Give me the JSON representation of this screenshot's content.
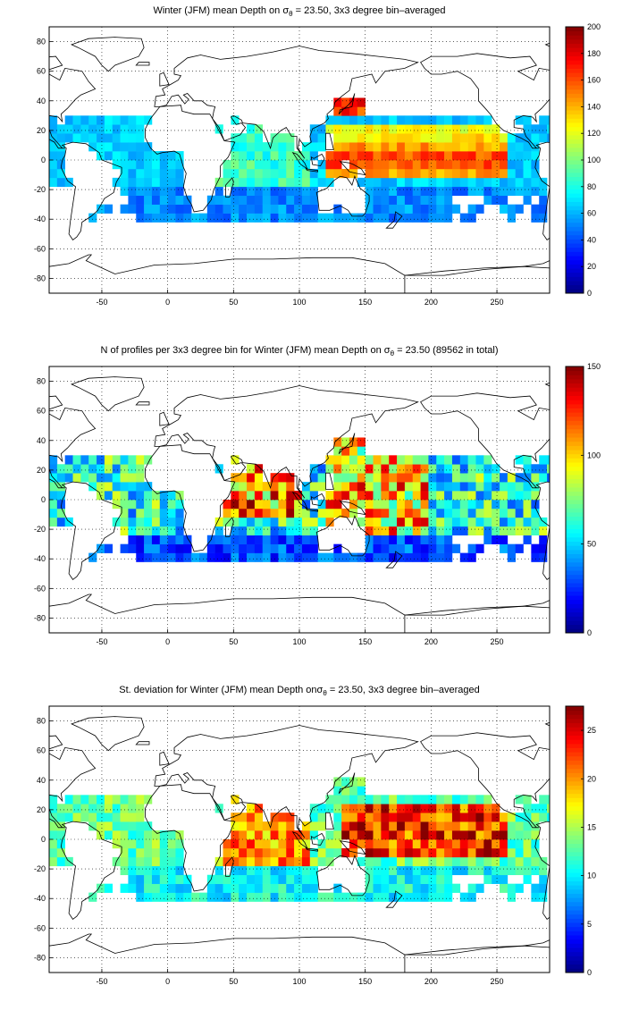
{
  "chart_data": [
    {
      "type": "heatmap",
      "title_prefix": "Winter (JFM) mean Depth on ",
      "title_symbol": "σ",
      "title_sub": "θ",
      "title_suffix": " = 23.50, 3x3 degree bin–averaged",
      "xlim": [
        -90,
        290
      ],
      "ylim": [
        -90,
        90
      ],
      "xticks": [
        "-50",
        "0",
        "50",
        "100",
        "150",
        "200",
        "250"
      ],
      "yticks": [
        "80",
        "60",
        "40",
        "20",
        "0",
        "-20",
        "-40",
        "-60",
        "-80"
      ],
      "colorbar": {
        "min": 0,
        "max": 200,
        "ticks": [
          "200",
          "180",
          "160",
          "140",
          "120",
          "100",
          "80",
          "60",
          "40",
          "20",
          "0"
        ]
      },
      "colormap": "jet",
      "grid": true,
      "field": "mean_depth"
    },
    {
      "type": "heatmap",
      "title_prefix": "N of profiles per 3x3 degree bin for Winter (JFM) mean Depth on ",
      "title_symbol": "σ",
      "title_sub": "θ",
      "title_suffix": " = 23.50 (89562 in total)",
      "xlim": [
        -90,
        290
      ],
      "ylim": [
        -90,
        90
      ],
      "xticks": [
        "-50",
        "0",
        "50",
        "100",
        "150",
        "200",
        "250"
      ],
      "yticks": [
        "80",
        "60",
        "40",
        "20",
        "0",
        "-20",
        "-40",
        "-60",
        "-80"
      ],
      "colorbar": {
        "min": 0,
        "max": 150,
        "ticks": [
          "150",
          "100",
          "50",
          "0"
        ]
      },
      "colormap": "jet",
      "grid": true,
      "field": "profile_count"
    },
    {
      "type": "heatmap",
      "title_prefix": "St. deviation for Winter (JFM) mean Depth on",
      "title_symbol": "σ",
      "title_sub": "θ",
      "title_suffix": " = 23.50, 3x3 degree bin–averaged",
      "xlim": [
        -90,
        290
      ],
      "ylim": [
        -90,
        90
      ],
      "xticks": [
        "-50",
        "0",
        "50",
        "100",
        "150",
        "200",
        "250"
      ],
      "yticks": [
        "80",
        "60",
        "40",
        "20",
        "0",
        "-20",
        "-40",
        "-60",
        "-80"
      ],
      "colorbar": {
        "min": 0,
        "max": 27.5,
        "ticks": [
          "25",
          "20",
          "15",
          "10",
          "5",
          "0"
        ]
      },
      "colormap": "jet",
      "grid": true,
      "field": "std_depth"
    }
  ]
}
